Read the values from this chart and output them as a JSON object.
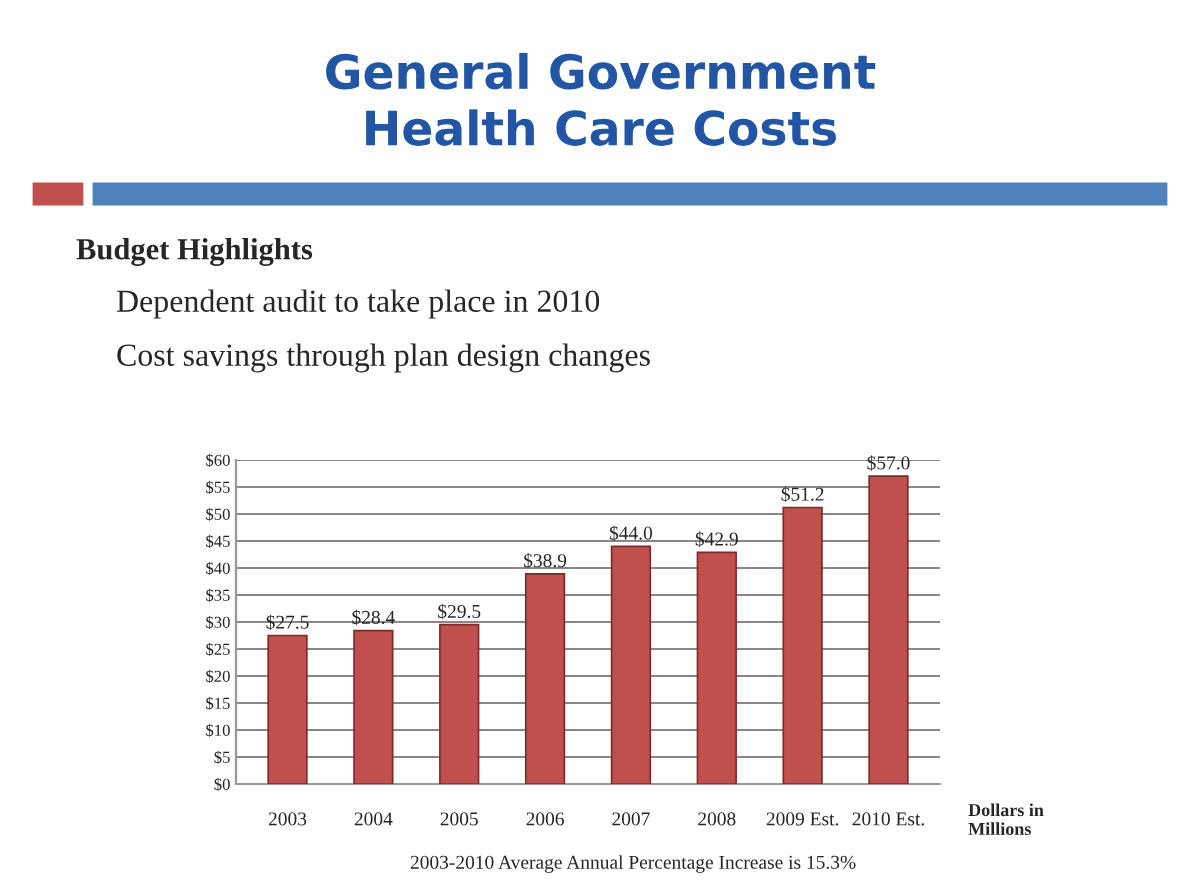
{
  "chart_data": {
    "type": "bar",
    "title": "General Government\nHealth Care Costs",
    "annotations": [
      "Budget Highlights",
      "Dependent audit to take place in 2010",
      "Cost savings through plan design changes",
      "2003-2010 Average Annual Percentage Increase is 15.3%"
    ],
    "ylabel": "Dollars in\nMillions",
    "categories": [
      "2003",
      "2004",
      "2005",
      "2006",
      "2007",
      "2008",
      "2009 Est.",
      "2010 Est."
    ],
    "values": [
      27.5,
      28.4,
      29.5,
      38.9,
      44.0,
      42.9,
      51.2,
      57.0
    ],
    "value_labels": [
      "$27.5",
      "$28.4",
      "$29.5",
      "$38.9",
      "$44.0",
      "$42.9",
      "$51.2",
      "$57.0"
    ],
    "color": "#c0504d",
    "ylim": [
      0,
      60
    ],
    "yticks": [
      {
        "value": 0,
        "label": "$0"
      },
      {
        "value": 5,
        "label": "$5"
      },
      {
        "value": 10,
        "label": "$10"
      },
      {
        "value": 15,
        "label": "$15"
      },
      {
        "value": 20,
        "label": "$20"
      },
      {
        "value": 25,
        "label": "$25"
      },
      {
        "value": 30,
        "label": "$30"
      },
      {
        "value": 35,
        "label": "$35"
      },
      {
        "value": 40,
        "label": "$40"
      },
      {
        "value": 45,
        "label": "$45"
      },
      {
        "value": 50,
        "label": "$50"
      },
      {
        "value": 55,
        "label": "$55"
      },
      {
        "value": 60,
        "label": "$60"
      }
    ],
    "grid": "y"
  }
}
